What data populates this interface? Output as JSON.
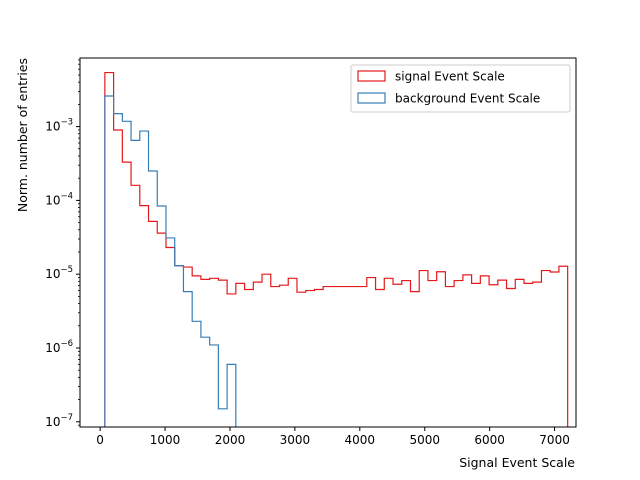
{
  "chart_data": {
    "type": "histogram",
    "scale": {
      "y": "log",
      "x": "linear"
    },
    "title": "",
    "xlabel": "Signal Event Scale",
    "ylabel": "Norm. number of entries",
    "xlim": [
      -310,
      7330
    ],
    "ylim": [
      8.5e-08,
      0.0085
    ],
    "x_ticks": [
      {
        "value": 0,
        "label": "0"
      },
      {
        "value": 1000,
        "label": "1000"
      },
      {
        "value": 2000,
        "label": "2000"
      },
      {
        "value": 3000,
        "label": "3000"
      },
      {
        "value": 4000,
        "label": "4000"
      },
      {
        "value": 5000,
        "label": "5000"
      },
      {
        "value": 6000,
        "label": "6000"
      },
      {
        "value": 7000,
        "label": "7000"
      }
    ],
    "y_ticks": [
      {
        "value": 1e-07,
        "base": "10",
        "exp": "−7"
      },
      {
        "value": 1e-06,
        "base": "10",
        "exp": "−6"
      },
      {
        "value": 1e-05,
        "base": "10",
        "exp": "−5"
      },
      {
        "value": 0.0001,
        "base": "10",
        "exp": "−4"
      },
      {
        "value": 0.001,
        "base": "10",
        "exp": "−3"
      }
    ],
    "legend_position": "top-right",
    "legend": [
      {
        "label": "signal Event Scale",
        "color": "#e41a1c"
      },
      {
        "label": "background Event Scale",
        "color": "#377eb8"
      }
    ],
    "series": [
      {
        "name": "signal Event Scale",
        "color": "#e41a1c",
        "bin_start": 73,
        "bin_width": 134.5,
        "values": [
          0.0054,
          0.0009,
          0.00033,
          0.00016,
          8.5e-05,
          5.2e-05,
          3.6e-05,
          2.3e-05,
          1.3e-05,
          1.25e-05,
          9.5e-06,
          8.5e-06,
          8.8e-06,
          8.3e-06,
          5.4e-06,
          7.5e-06,
          6.2e-06,
          7.8e-06,
          1e-05,
          6.8e-06,
          7.1e-06,
          8.8e-06,
          5.7e-06,
          6e-06,
          6.2e-06,
          6.8e-06,
          6.8e-06,
          6.8e-06,
          6.8e-06,
          6.8e-06,
          9e-06,
          6.2e-06,
          8.8e-06,
          7.3e-06,
          8.2e-06,
          5.8e-06,
          1.12e-05,
          8.2e-06,
          1.08e-05,
          6.8e-06,
          8.2e-06,
          9.8e-06,
          7.5e-06,
          9.5e-06,
          7.2e-06,
          8.3e-06,
          6.4e-06,
          8.5e-06,
          7.5e-06,
          7.8e-06,
          1.12e-05,
          1.07e-05,
          1.28e-05
        ]
      },
      {
        "name": "background Event Scale",
        "color": "#377eb8",
        "bin_start": 73,
        "bin_width": 134.5,
        "values": [
          0.0026,
          0.0015,
          0.00118,
          0.00065,
          0.00087,
          0.00025,
          8.4e-05,
          3.1e-05,
          1.3e-05,
          5.8e-06,
          2.3e-06,
          1.4e-06,
          1.1e-06,
          1.5e-07,
          6e-07
        ]
      }
    ]
  }
}
